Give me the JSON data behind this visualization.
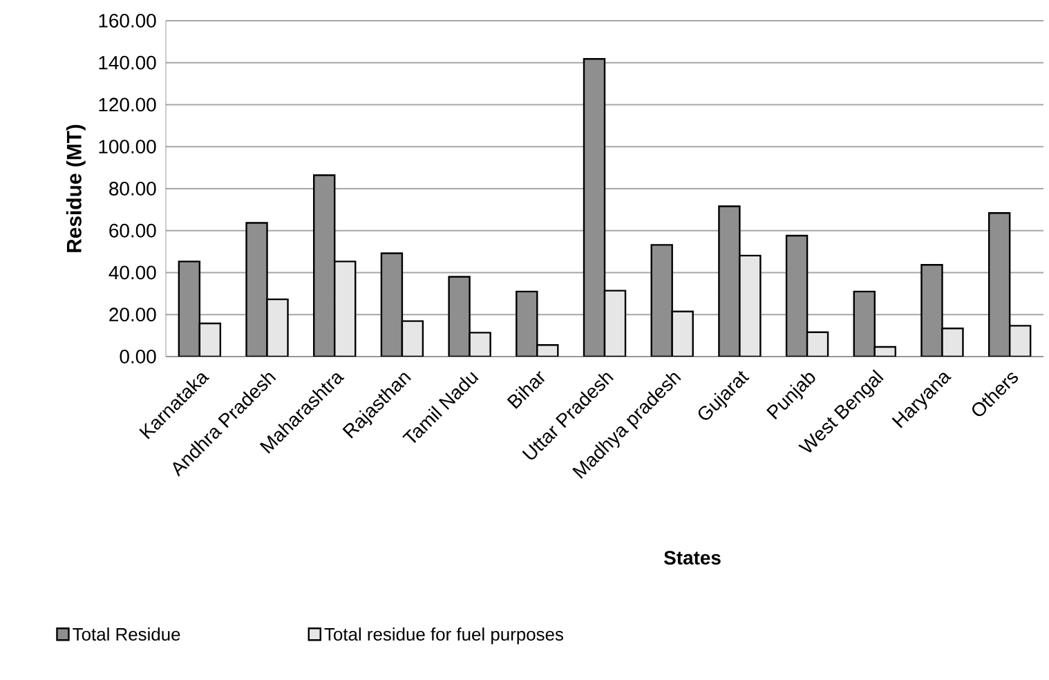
{
  "chart_data": {
    "type": "bar",
    "xlabel": "States",
    "ylabel": "Residue (MT)",
    "categories": [
      "Karnataka",
      "Andhra Pradesh",
      "Maharashtra",
      "Rajasthan",
      "Tamil Nadu",
      "Bihar",
      "Uttar Pradesh",
      "Madhya pradesh",
      "Gujarat",
      "Punjab",
      "West Bengal",
      "Haryana",
      "Others"
    ],
    "series": [
      {
        "name": "Total Residue",
        "color": "#8f8f8f",
        "values": [
          45.3,
          63.7,
          86.4,
          49.2,
          38.0,
          31.0,
          141.8,
          53.2,
          71.6,
          57.6,
          31.0,
          43.7,
          68.4
        ]
      },
      {
        "name": "Total residue for fuel purposes",
        "color": "#e6e6e6",
        "values": [
          15.8,
          27.3,
          45.3,
          16.9,
          11.4,
          5.5,
          31.4,
          21.5,
          48.1,
          11.6,
          4.6,
          13.4,
          14.7
        ]
      }
    ],
    "ylim": [
      0,
      160
    ],
    "yticks": [
      {
        "value": 0,
        "label": "0.00"
      },
      {
        "value": 20,
        "label": "20.00"
      },
      {
        "value": 40,
        "label": "40.00"
      },
      {
        "value": 60,
        "label": "60.00"
      },
      {
        "value": 80,
        "label": "80.00"
      },
      {
        "value": 100,
        "label": "100.00"
      },
      {
        "value": 120,
        "label": "120.00"
      },
      {
        "value": 140,
        "label": "140.00"
      },
      {
        "value": 160,
        "label": "160.00"
      }
    ],
    "grid": "y",
    "legend": "bottom"
  }
}
